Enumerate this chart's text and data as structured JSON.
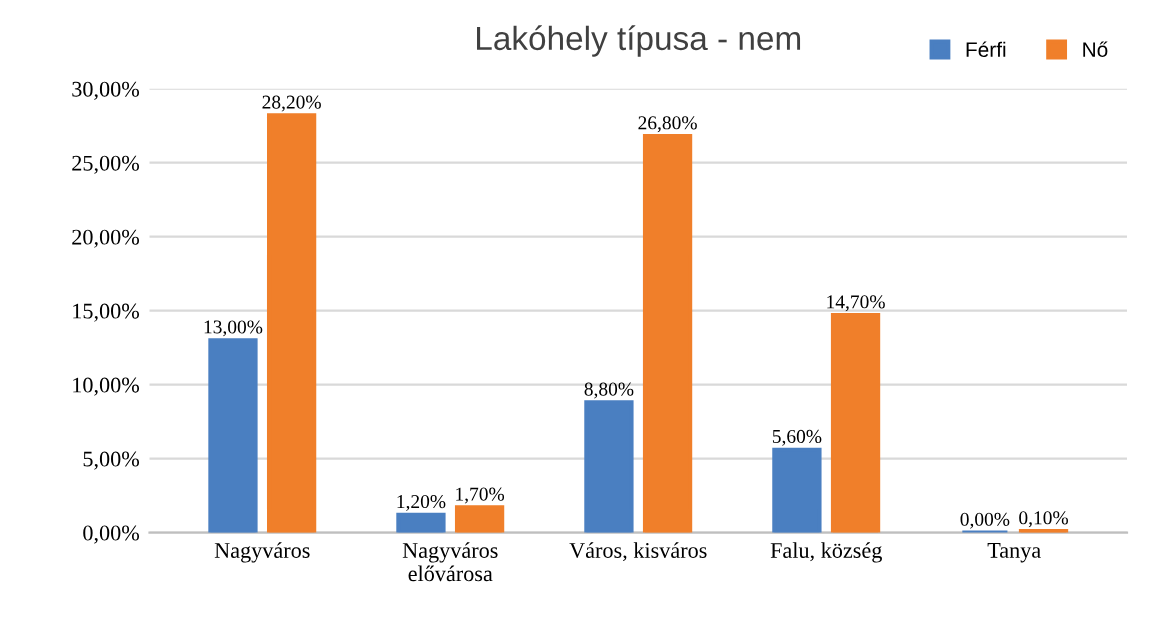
{
  "chart_data": {
    "type": "bar",
    "title": "Lakóhely típusa - nem",
    "categories": [
      "Nagyváros",
      "Nagyváros\nelővárosa",
      "Város, kisváros",
      "Falu, község",
      "Tanya"
    ],
    "series": [
      {
        "name": "Férfi",
        "color": "#4a7fc1",
        "values": [
          13.0,
          1.2,
          8.8,
          5.6,
          0.0
        ],
        "value_labels": [
          "13,00%",
          "1,20%",
          "8,80%",
          "5,60%",
          "0,00%"
        ]
      },
      {
        "name": "Nő",
        "color": "#f07f2a",
        "values": [
          28.2,
          1.7,
          26.8,
          14.7,
          0.1
        ],
        "value_labels": [
          "28,20%",
          "1,70%",
          "26,80%",
          "14,70%",
          "0,10%"
        ]
      }
    ],
    "ylim": [
      0,
      30
    ],
    "yticks": [
      {
        "value": 0,
        "label": "0,00%"
      },
      {
        "value": 5,
        "label": "5,00%"
      },
      {
        "value": 10,
        "label": "10,00%"
      },
      {
        "value": 15,
        "label": "15,00%"
      },
      {
        "value": 20,
        "label": "20,00%"
      },
      {
        "value": 25,
        "label": "25,00%"
      },
      {
        "value": 30,
        "label": "30,00%"
      }
    ],
    "grid": "y",
    "legend": "top right"
  }
}
